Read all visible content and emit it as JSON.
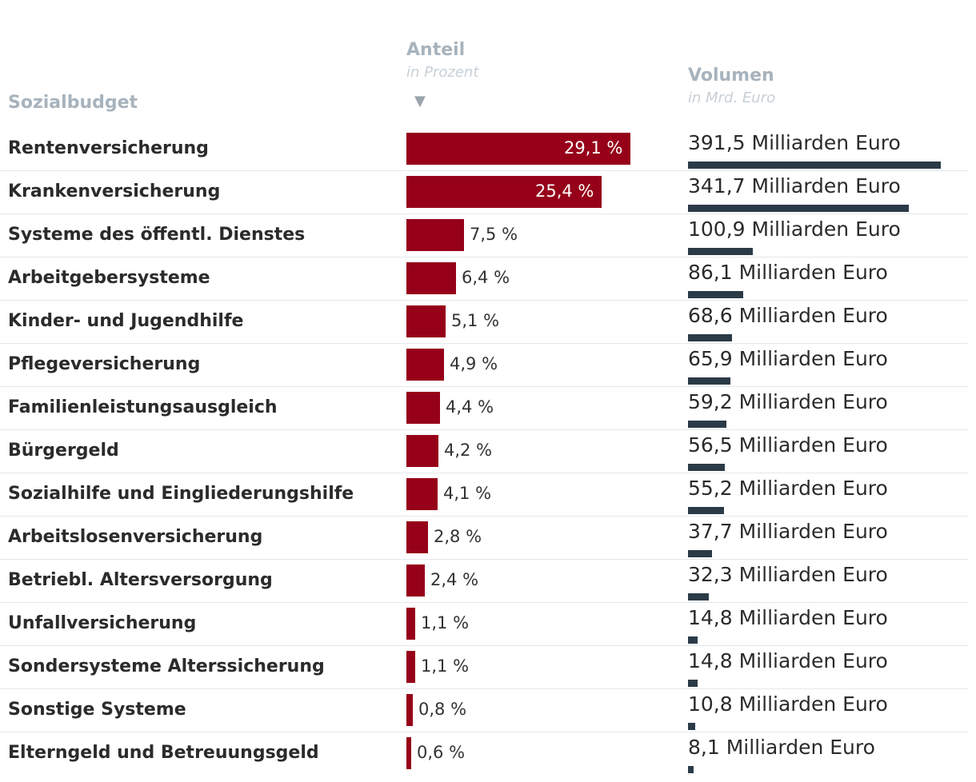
{
  "chart_data": {
    "type": "table",
    "columns": {
      "label": "Sozialbudget",
      "share": {
        "title": "Anteil",
        "unit": "in Prozent",
        "sort_icon": "sort-descending-icon"
      },
      "volume": {
        "title": "Volumen",
        "unit": "in Mrd. Euro"
      }
    },
    "share_max": 29.1,
    "volume_max": 391.5,
    "rows": [
      {
        "name": "Rentenversicherung",
        "share": 29.1,
        "share_label": "29,1 %",
        "volume": 391.5,
        "volume_label": "391,5 Milliarden Euro"
      },
      {
        "name": "Krankenversicherung",
        "share": 25.4,
        "share_label": "25,4 %",
        "volume": 341.7,
        "volume_label": "341,7 Milliarden Euro"
      },
      {
        "name": "Systeme des öffentl. Dienstes",
        "share": 7.5,
        "share_label": "7,5 %",
        "volume": 100.9,
        "volume_label": "100,9 Milliarden Euro"
      },
      {
        "name": "Arbeitgebersysteme",
        "share": 6.4,
        "share_label": "6,4 %",
        "volume": 86.1,
        "volume_label": "86,1 Milliarden Euro"
      },
      {
        "name": "Kinder- und Jugendhilfe",
        "share": 5.1,
        "share_label": "5,1 %",
        "volume": 68.6,
        "volume_label": "68,6 Milliarden Euro"
      },
      {
        "name": "Pflegeversicherung",
        "share": 4.9,
        "share_label": "4,9 %",
        "volume": 65.9,
        "volume_label": "65,9 Milliarden Euro"
      },
      {
        "name": "Familienleistungsausgleich",
        "share": 4.4,
        "share_label": "4,4 %",
        "volume": 59.2,
        "volume_label": "59,2 Milliarden Euro"
      },
      {
        "name": "Bürgergeld",
        "share": 4.2,
        "share_label": "4,2 %",
        "volume": 56.5,
        "volume_label": "56,5 Milliarden Euro"
      },
      {
        "name": "Sozialhilfe und Eingliederungshilfe",
        "share": 4.1,
        "share_label": "4,1 %",
        "volume": 55.2,
        "volume_label": "55,2 Milliarden Euro"
      },
      {
        "name": "Arbeitslosenversicherung",
        "share": 2.8,
        "share_label": "2,8 %",
        "volume": 37.7,
        "volume_label": "37,7 Milliarden Euro"
      },
      {
        "name": "Betriebl. Altersversorgung",
        "share": 2.4,
        "share_label": "2,4 %",
        "volume": 32.3,
        "volume_label": "32,3 Milliarden Euro"
      },
      {
        "name": "Unfallversicherung",
        "share": 1.1,
        "share_label": "1,1 %",
        "volume": 14.8,
        "volume_label": "14,8 Milliarden Euro"
      },
      {
        "name": "Sondersysteme Alterssicherung",
        "share": 1.1,
        "share_label": "1,1 %",
        "volume": 14.8,
        "volume_label": "14,8 Milliarden Euro"
      },
      {
        "name": "Sonstige Systeme",
        "share": 0.8,
        "share_label": "0,8 %",
        "volume": 10.8,
        "volume_label": "10,8 Milliarden Euro"
      },
      {
        "name": "Elterngeld und Betreuungsgeld",
        "share": 0.6,
        "share_label": "0,6 %",
        "volume": 8.1,
        "volume_label": "8,1 Milliarden Euro"
      }
    ]
  },
  "colors": {
    "share_bar": "#960019",
    "volume_bar": "#2b3a47",
    "header": "#a7b3bd",
    "subheader": "#c8d0d6"
  }
}
